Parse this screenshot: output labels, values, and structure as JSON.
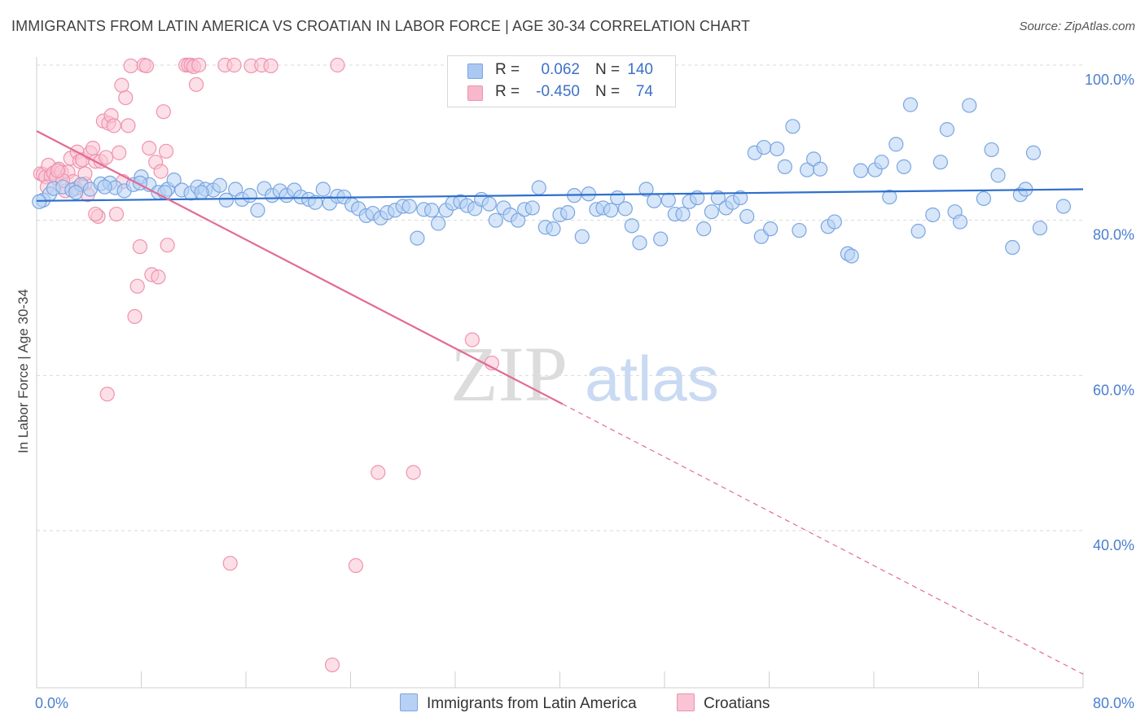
{
  "title": "IMMIGRANTS FROM LATIN AMERICA VS CROATIAN IN LABOR FORCE | AGE 30-34 CORRELATION CHART",
  "source": "Source: ZipAtlas.com",
  "watermark": {
    "zip": "ZIP",
    "atlas": "atlas"
  },
  "legend": {
    "rows": [
      {
        "r_label": "R =",
        "r_value": "0.062",
        "n_label": "N =",
        "n_value": "140",
        "color": "#aac8f2"
      },
      {
        "r_label": "R =",
        "r_value": "-0.450",
        "n_label": "N =",
        "n_value": "74",
        "color": "#f7b8cb"
      }
    ]
  },
  "colors": {
    "blue_fill": "#b7d1f4",
    "blue_stroke": "#7aa6e0",
    "blue_line": "#2f6fcc",
    "pink_fill": "#f9c4d4",
    "pink_stroke": "#ee93b0",
    "pink_line": "#e36a94",
    "grid": "#d9d9d9",
    "tick_label": "#4a7fcf"
  },
  "chart_data": {
    "type": "scatter",
    "title": "IMMIGRANTS FROM LATIN AMERICA VS CROATIAN IN LABOR FORCE | AGE 30-34 CORRELATION CHART",
    "xlabel": "",
    "ylabel": "In Labor Force | Age 30-34",
    "xlim": [
      0,
      80
    ],
    "ylim": [
      20,
      102
    ],
    "x_tick_labels": [
      "0.0%",
      "80.0%"
    ],
    "y_ticks": [
      40,
      60,
      80,
      100
    ],
    "y_tick_labels": [
      "40.0%",
      "60.0%",
      "80.0%",
      "100.0%"
    ],
    "grid": true,
    "legend_position": "top-center",
    "series": [
      {
        "name": "Immigrants from Latin America",
        "color": "#b7d1f4",
        "trend": {
          "x": [
            0,
            80
          ],
          "y": [
            82.5,
            84.0
          ],
          "dashed_from": null
        },
        "points": [
          [
            0.5,
            82.6
          ],
          [
            1.0,
            83.4
          ],
          [
            1.3,
            84.1
          ],
          [
            2.0,
            84.3
          ],
          [
            2.7,
            83.9
          ],
          [
            3.4,
            84.6
          ],
          [
            4.1,
            84.0
          ],
          [
            4.9,
            84.7
          ],
          [
            5.6,
            84.8
          ],
          [
            6.0,
            84.2
          ],
          [
            6.7,
            83.8
          ],
          [
            7.4,
            84.6
          ],
          [
            8.0,
            85.6
          ],
          [
            8.6,
            84.6
          ],
          [
            9.3,
            83.6
          ],
          [
            10.0,
            84.0
          ],
          [
            10.5,
            85.2
          ],
          [
            11.1,
            83.9
          ],
          [
            11.8,
            83.5
          ],
          [
            12.3,
            84.3
          ],
          [
            12.9,
            84.0
          ],
          [
            13.5,
            83.9
          ],
          [
            14.0,
            84.5
          ],
          [
            14.5,
            82.6
          ],
          [
            15.2,
            84.0
          ],
          [
            15.7,
            82.7
          ],
          [
            16.3,
            83.2
          ],
          [
            16.9,
            81.3
          ],
          [
            17.4,
            84.1
          ],
          [
            18.0,
            83.2
          ],
          [
            18.6,
            83.8
          ],
          [
            19.1,
            83.2
          ],
          [
            19.7,
            83.9
          ],
          [
            20.2,
            83.0
          ],
          [
            20.8,
            82.7
          ],
          [
            21.3,
            82.3
          ],
          [
            21.9,
            84.0
          ],
          [
            22.4,
            82.2
          ],
          [
            23.0,
            83.1
          ],
          [
            23.5,
            83.0
          ],
          [
            24.1,
            82.0
          ],
          [
            24.6,
            81.5
          ],
          [
            25.2,
            80.6
          ],
          [
            25.7,
            80.9
          ],
          [
            26.3,
            80.3
          ],
          [
            26.8,
            81.0
          ],
          [
            27.4,
            81.3
          ],
          [
            28.0,
            81.8
          ],
          [
            28.5,
            81.8
          ],
          [
            29.1,
            77.7
          ],
          [
            29.6,
            81.4
          ],
          [
            30.2,
            81.3
          ],
          [
            30.7,
            79.6
          ],
          [
            31.3,
            81.3
          ],
          [
            31.8,
            82.2
          ],
          [
            32.4,
            82.4
          ],
          [
            32.9,
            81.9
          ],
          [
            33.5,
            81.5
          ],
          [
            34.0,
            82.7
          ],
          [
            34.6,
            82.1
          ],
          [
            35.1,
            80.0
          ],
          [
            35.7,
            81.6
          ],
          [
            36.2,
            80.7
          ],
          [
            36.8,
            80.0
          ],
          [
            37.3,
            81.4
          ],
          [
            37.9,
            81.6
          ],
          [
            38.4,
            84.2
          ],
          [
            38.9,
            79.1
          ],
          [
            39.5,
            78.9
          ],
          [
            40.0,
            80.7
          ],
          [
            40.6,
            81.0
          ],
          [
            41.1,
            83.2
          ],
          [
            41.7,
            77.9
          ],
          [
            42.2,
            83.4
          ],
          [
            42.8,
            81.4
          ],
          [
            43.3,
            81.6
          ],
          [
            43.9,
            81.3
          ],
          [
            44.4,
            82.9
          ],
          [
            45.0,
            81.5
          ],
          [
            45.5,
            79.3
          ],
          [
            46.1,
            77.1
          ],
          [
            46.6,
            84.0
          ],
          [
            47.2,
            82.5
          ],
          [
            47.7,
            77.6
          ],
          [
            48.3,
            82.6
          ],
          [
            48.8,
            80.8
          ],
          [
            49.4,
            80.8
          ],
          [
            49.9,
            82.4
          ],
          [
            50.5,
            82.9
          ],
          [
            51.0,
            78.9
          ],
          [
            51.6,
            81.1
          ],
          [
            52.1,
            82.9
          ],
          [
            52.7,
            81.6
          ],
          [
            53.2,
            82.3
          ],
          [
            53.8,
            82.9
          ],
          [
            54.3,
            80.5
          ],
          [
            54.9,
            88.7
          ],
          [
            55.4,
            77.9
          ],
          [
            55.6,
            89.4
          ],
          [
            56.1,
            78.9
          ],
          [
            56.6,
            89.2
          ],
          [
            57.2,
            86.9
          ],
          [
            57.8,
            92.1
          ],
          [
            58.3,
            78.7
          ],
          [
            58.9,
            86.5
          ],
          [
            59.4,
            87.9
          ],
          [
            59.9,
            86.6
          ],
          [
            60.5,
            79.2
          ],
          [
            61.0,
            79.8
          ],
          [
            62.0,
            75.7
          ],
          [
            62.3,
            75.4
          ],
          [
            63.0,
            86.4
          ],
          [
            64.1,
            86.5
          ],
          [
            64.6,
            87.5
          ],
          [
            65.2,
            83.0
          ],
          [
            65.7,
            89.8
          ],
          [
            66.3,
            86.9
          ],
          [
            66.8,
            94.9
          ],
          [
            67.4,
            78.6
          ],
          [
            68.5,
            80.7
          ],
          [
            69.1,
            87.5
          ],
          [
            69.6,
            91.7
          ],
          [
            70.2,
            81.1
          ],
          [
            70.6,
            79.8
          ],
          [
            71.3,
            94.8
          ],
          [
            72.4,
            82.8
          ],
          [
            73.0,
            89.1
          ],
          [
            73.5,
            85.8
          ],
          [
            74.6,
            76.5
          ],
          [
            75.2,
            83.3
          ],
          [
            75.6,
            84.0
          ],
          [
            76.2,
            88.7
          ],
          [
            76.7,
            79.0
          ],
          [
            78.5,
            81.8
          ],
          [
            0.2,
            82.4
          ],
          [
            3.0,
            83.6
          ],
          [
            5.2,
            84.3
          ],
          [
            7.9,
            84.8
          ],
          [
            9.8,
            83.6
          ],
          [
            12.6,
            83.6
          ]
        ]
      },
      {
        "name": "Croatians",
        "color": "#f9c4d4",
        "trend": {
          "x": [
            0,
            80
          ],
          "y": [
            91.5,
            21.5
          ],
          "dashed_from": 40.2
        },
        "points": [
          [
            0.3,
            86.0
          ],
          [
            0.5,
            85.9
          ],
          [
            0.7,
            85.6
          ],
          [
            0.9,
            87.1
          ],
          [
            1.1,
            85.7
          ],
          [
            1.3,
            86.1
          ],
          [
            1.5,
            85.5
          ],
          [
            1.7,
            86.6
          ],
          [
            1.9,
            86.2
          ],
          [
            2.2,
            83.8
          ],
          [
            2.4,
            86.2
          ],
          [
            2.6,
            88.0
          ],
          [
            2.8,
            85.0
          ],
          [
            3.0,
            84.1
          ],
          [
            3.1,
            88.8
          ],
          [
            3.3,
            87.6
          ],
          [
            3.5,
            87.8
          ],
          [
            3.7,
            84.7
          ],
          [
            3.9,
            83.3
          ],
          [
            4.1,
            88.7
          ],
          [
            4.3,
            89.3
          ],
          [
            4.5,
            87.6
          ],
          [
            4.7,
            80.5
          ],
          [
            4.9,
            87.6
          ],
          [
            5.1,
            92.8
          ],
          [
            5.3,
            88.1
          ],
          [
            5.5,
            92.5
          ],
          [
            5.7,
            93.5
          ],
          [
            5.9,
            92.2
          ],
          [
            6.1,
            80.8
          ],
          [
            6.3,
            88.7
          ],
          [
            6.5,
            97.4
          ],
          [
            6.8,
            95.8
          ],
          [
            7.0,
            92.2
          ],
          [
            7.2,
            99.9
          ],
          [
            7.5,
            67.6
          ],
          [
            7.7,
            71.5
          ],
          [
            7.9,
            76.6
          ],
          [
            8.2,
            100.0
          ],
          [
            8.4,
            99.9
          ],
          [
            8.6,
            89.3
          ],
          [
            8.8,
            73.0
          ],
          [
            9.1,
            87.5
          ],
          [
            9.3,
            72.7
          ],
          [
            9.5,
            86.3
          ],
          [
            9.7,
            94.0
          ],
          [
            9.9,
            88.9
          ],
          [
            10.0,
            76.8
          ],
          [
            11.4,
            100.0
          ],
          [
            11.6,
            100.0
          ],
          [
            11.8,
            100.0
          ],
          [
            12.0,
            99.8
          ],
          [
            12.2,
            97.5
          ],
          [
            12.4,
            100.0
          ],
          [
            14.4,
            100.0
          ],
          [
            15.1,
            100.0
          ],
          [
            16.4,
            99.9
          ],
          [
            17.2,
            100.0
          ],
          [
            17.9,
            99.9
          ],
          [
            23.0,
            100.0
          ],
          [
            6.6,
            85.0
          ],
          [
            4.5,
            80.8
          ],
          [
            5.4,
            57.6
          ],
          [
            14.8,
            35.8
          ],
          [
            24.4,
            35.5
          ],
          [
            26.1,
            47.5
          ],
          [
            28.8,
            47.5
          ],
          [
            33.3,
            64.6
          ],
          [
            34.8,
            61.6
          ],
          [
            22.6,
            22.7
          ],
          [
            2.0,
            85.1
          ],
          [
            1.6,
            86.4
          ],
          [
            0.8,
            84.3
          ],
          [
            3.7,
            86.0
          ]
        ]
      }
    ]
  }
}
